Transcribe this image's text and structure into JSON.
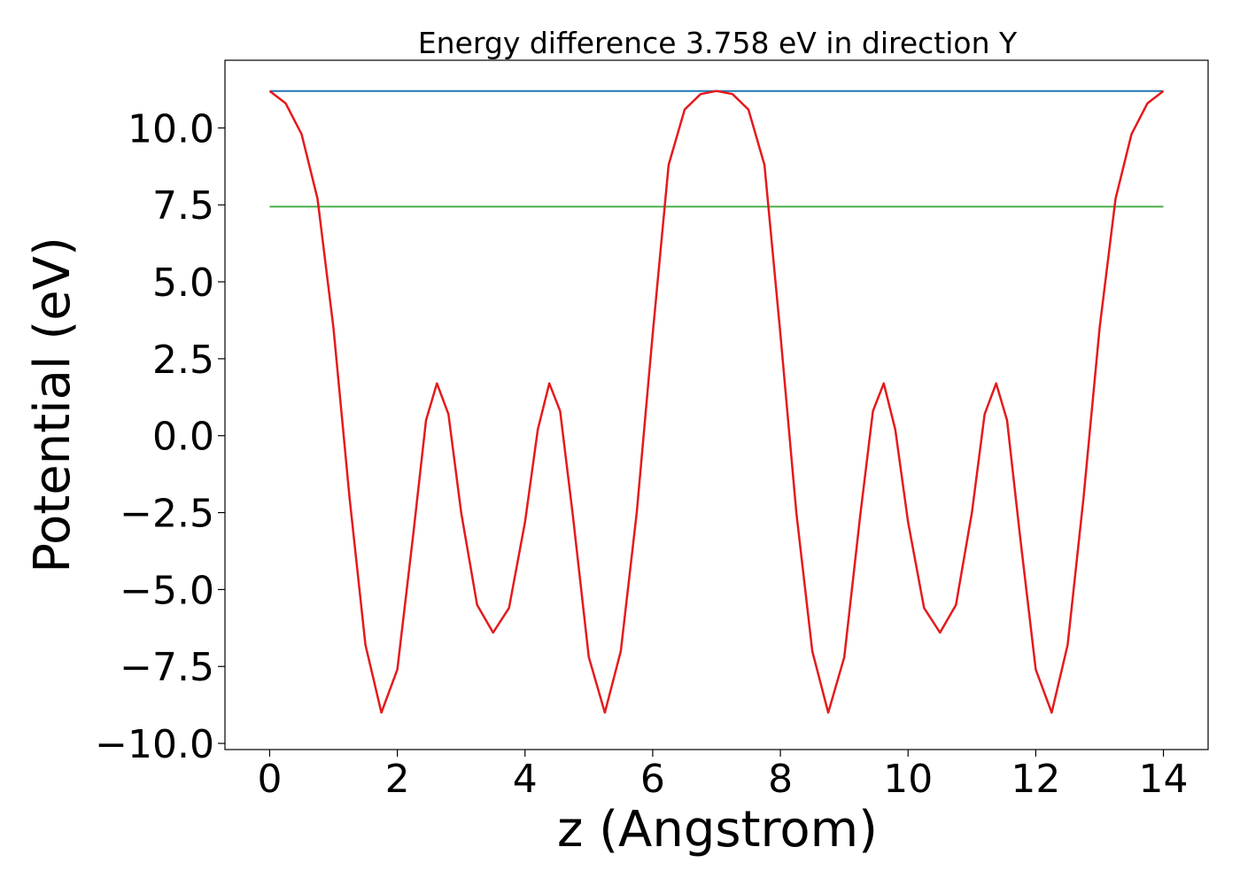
{
  "chart_data": {
    "type": "line",
    "title": "Energy difference 3.758 eV in direction Y",
    "xlabel": "z (Angstrom)",
    "ylabel": "Potential (eV)",
    "xlim": [
      -0.7,
      14.7
    ],
    "ylim": [
      -10.2,
      12.2
    ],
    "xticks": [
      0,
      2,
      4,
      6,
      8,
      10,
      12,
      14
    ],
    "xtick_labels": [
      "0",
      "2",
      "4",
      "6",
      "8",
      "10",
      "12",
      "14"
    ],
    "yticks": [
      10.0,
      7.5,
      5.0,
      2.5,
      0.0,
      -2.5,
      -5.0,
      -7.5,
      -10.0
    ],
    "ytick_labels": [
      "10.0",
      "7.5",
      "5.0",
      "2.5",
      "0.0",
      "−2.5",
      "−5.0",
      "−7.5",
      "−10.0"
    ],
    "grid": false,
    "series": [
      {
        "name": "potential",
        "color": "#e41a1c",
        "x": [
          0.0,
          0.25,
          0.5,
          0.75,
          1.0,
          1.25,
          1.5,
          1.75,
          2.0,
          2.25,
          2.45,
          2.62,
          2.8,
          3.0,
          3.25,
          3.5,
          3.75,
          4.0,
          4.2,
          4.38,
          4.55,
          4.75,
          5.0,
          5.25,
          5.5,
          5.75,
          6.0,
          6.25,
          6.5,
          6.75,
          7.0,
          7.25,
          7.5,
          7.75,
          8.0,
          8.25,
          8.5,
          8.75,
          9.0,
          9.25,
          9.45,
          9.62,
          9.8,
          10.0,
          10.25,
          10.5,
          10.75,
          11.0,
          11.2,
          11.38,
          11.55,
          11.75,
          12.0,
          12.25,
          12.5,
          12.75,
          13.0,
          13.25,
          13.5,
          13.75,
          14.0
        ],
        "y": [
          11.2,
          10.8,
          9.8,
          7.7,
          3.5,
          -2.0,
          -6.8,
          -9.0,
          -7.6,
          -3.2,
          0.5,
          1.7,
          0.7,
          -2.5,
          -5.5,
          -6.4,
          -5.6,
          -2.8,
          0.2,
          1.7,
          0.8,
          -2.6,
          -7.2,
          -9.0,
          -7.0,
          -2.5,
          3.3,
          8.8,
          10.6,
          11.1,
          11.2,
          11.1,
          10.6,
          8.8,
          3.3,
          -2.5,
          -7.0,
          -9.0,
          -7.2,
          -2.6,
          0.8,
          1.7,
          0.2,
          -2.8,
          -5.6,
          -6.4,
          -5.5,
          -2.5,
          0.7,
          1.7,
          0.5,
          -3.2,
          -7.6,
          -9.0,
          -6.8,
          -2.0,
          3.5,
          7.7,
          9.8,
          10.8,
          11.2
        ]
      },
      {
        "name": "maximum",
        "color": "#1f77b4",
        "x": [
          0,
          14
        ],
        "y": [
          11.2,
          11.2
        ]
      },
      {
        "name": "average",
        "color": "#4daf4a",
        "x": [
          0,
          14
        ],
        "y": [
          7.442,
          7.442
        ]
      }
    ]
  }
}
